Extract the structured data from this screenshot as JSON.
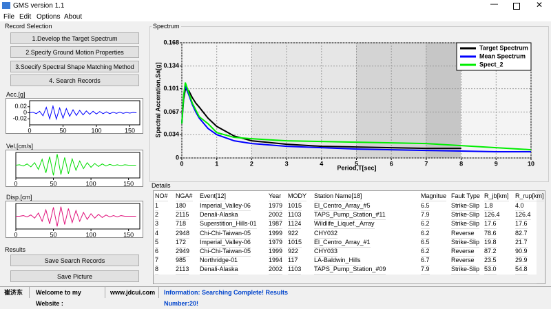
{
  "window": {
    "title": "GMS version 1.1"
  },
  "menu": [
    "File",
    "Edit",
    "Options",
    "About"
  ],
  "record_selection": {
    "title": "Record Selection",
    "buttons": [
      "1.Develop the Target Spectrum",
      "2.Specify Ground Motion  Properties",
      "3.Soecify Spectral Shape Matching Method",
      "4. Search Records"
    ]
  },
  "acc": {
    "type": "line",
    "label": "Acc.[g]",
    "color": "#0000ff",
    "xlim": [
      0,
      165
    ],
    "xticks": [
      0,
      50,
      100,
      150
    ],
    "ylim": [
      -0.04,
      0.04
    ],
    "yticks": [
      0.02,
      0,
      -0.02
    ],
    "x": [
      0,
      5,
      10,
      15,
      20,
      25,
      30,
      35,
      40,
      45,
      50,
      55,
      60,
      65,
      70,
      75,
      80,
      85,
      90,
      95,
      100,
      105,
      110,
      115,
      120,
      125,
      130,
      135,
      140,
      145,
      150,
      155,
      160
    ],
    "values": [
      0,
      0.002,
      -0.003,
      0.005,
      -0.01,
      0.018,
      -0.02,
      0.022,
      -0.021,
      0.016,
      -0.018,
      0.014,
      -0.012,
      0.01,
      -0.009,
      0.008,
      -0.007,
      0.006,
      -0.005,
      0.005,
      -0.004,
      0.004,
      -0.003,
      0.003,
      -0.003,
      0.002,
      -0.002,
      0.002,
      -0.002,
      0.001,
      -0.001,
      0.001,
      0
    ]
  },
  "vel": {
    "type": "line",
    "label": "Vel.[cm/s]",
    "color": "#00dd00",
    "xlim": [
      0,
      165
    ],
    "xticks": [
      0,
      50,
      100,
      150
    ],
    "ylim": [
      -30,
      30
    ],
    "x": [
      0,
      5,
      10,
      15,
      20,
      25,
      30,
      35,
      40,
      45,
      50,
      55,
      60,
      65,
      70,
      75,
      80,
      85,
      90,
      95,
      100,
      105,
      110,
      115,
      120,
      125,
      130,
      135,
      140,
      145,
      150,
      155,
      160
    ],
    "values": [
      0,
      1,
      -2,
      3,
      -4,
      6,
      -10,
      14,
      -18,
      20,
      -24,
      26,
      -22,
      18,
      -20,
      15,
      -12,
      10,
      -8,
      6,
      -5,
      4,
      -3,
      3,
      -2,
      2,
      -1,
      1,
      -1,
      1,
      0,
      0,
      0
    ]
  },
  "disp": {
    "type": "line",
    "label": "Disp.[cm]",
    "color": "#e0107a",
    "xlim": [
      0,
      165
    ],
    "xticks": [
      0,
      50,
      100,
      150
    ],
    "ylim": [
      -20,
      20
    ],
    "x": [
      0,
      5,
      10,
      15,
      20,
      25,
      30,
      35,
      40,
      45,
      50,
      55,
      60,
      65,
      70,
      75,
      80,
      85,
      90,
      95,
      100,
      105,
      110,
      115,
      120,
      125,
      130,
      135,
      140,
      145,
      150,
      155,
      160
    ],
    "values": [
      0,
      0,
      1,
      -1,
      2,
      -3,
      5,
      -8,
      10,
      -12,
      14,
      -16,
      15,
      -13,
      12,
      -10,
      9,
      -8,
      6,
      -5,
      4,
      -3,
      3,
      -2,
      2,
      -1,
      1,
      -1,
      1,
      0,
      0,
      0,
      0
    ]
  },
  "results": {
    "title": "Results",
    "buttons": [
      "Save Search Records",
      "Save Picture"
    ]
  },
  "spectrum": {
    "title": "Spectrum",
    "chart_data": {
      "type": "line",
      "x_label": "Period,T[sec]",
      "y_label": "Spectral Acceration,Sa[g]",
      "xlim": [
        0,
        10
      ],
      "xticks": [
        0,
        1,
        2,
        3,
        4,
        5,
        6,
        7,
        8,
        9,
        10
      ],
      "ylim": [
        0,
        0.168
      ],
      "yticks": [
        0,
        0.034,
        0.067,
        0.101,
        0.134,
        0.168
      ],
      "grid": true,
      "legend": "upper right",
      "x": [
        0,
        0.05,
        0.1,
        0.2,
        0.3,
        0.4,
        0.5,
        0.75,
        1,
        1.5,
        2,
        3,
        4,
        5,
        6,
        7,
        8,
        9,
        10
      ],
      "series": [
        {
          "name": "Target Spectrum",
          "color": "#000000",
          "values": [
            0.05,
            0.085,
            0.1,
            0.098,
            0.088,
            0.08,
            0.074,
            0.058,
            0.046,
            0.032,
            0.025,
            0.02,
            0.017,
            0.016,
            0.015,
            0.014,
            0.014,
            null,
            null
          ]
        },
        {
          "name": "Mean Spectrum",
          "color": "#0000ff",
          "values": [
            0.05,
            0.09,
            0.105,
            0.092,
            0.078,
            0.067,
            0.058,
            0.043,
            0.034,
            0.025,
            0.021,
            0.017,
            0.015,
            0.013,
            0.012,
            0.011,
            0.01,
            0.009,
            0.009
          ]
        },
        {
          "name": "Spect_2",
          "color": "#00ee00",
          "values": [
            0.05,
            0.09,
            0.11,
            0.095,
            0.08,
            0.07,
            0.06,
            0.05,
            0.037,
            0.03,
            0.028,
            0.025,
            0.024,
            0.023,
            0.022,
            0.021,
            0.018,
            0.015,
            0.012
          ]
        }
      ]
    }
  },
  "details": {
    "title": "Details",
    "columns": [
      "NO#",
      "NGA#",
      "Event[12]",
      "Year",
      "MODY",
      "Station Name[18]",
      "Magnitue",
      "Fault Type",
      "R_jb[km]",
      "R_rup[km]"
    ],
    "rows": [
      [
        "1",
        "180",
        "Imperial_Valley-06",
        "1979",
        "1015",
        "El_Centro_Array_#5",
        "6.5",
        "Strike-Slip",
        "1.8",
        "4.0"
      ],
      [
        "2",
        "2115",
        "Denali-Alaska",
        "2002",
        "1103",
        "TAPS_Pump_Station_#11",
        "7.9",
        "Strike-Slip",
        "126.4",
        "126.4"
      ],
      [
        "3",
        "718",
        "Superstition_Hills-01",
        "1987",
        "1124",
        "Wildlife_Liquef._Array",
        "6.2",
        "Strike-Slip",
        "17.6",
        "17.6"
      ],
      [
        "4",
        "2948",
        "Chi-Chi-Taiwan-05",
        "1999",
        "922",
        "CHY032",
        "6.2",
        "Reverse",
        "78.6",
        "82.7"
      ],
      [
        "5",
        "172",
        "Imperial_Valley-06",
        "1979",
        "1015",
        "El_Centro_Array_#1",
        "6.5",
        "Strike-Slip",
        "19.8",
        "21.7"
      ],
      [
        "6",
        "2949",
        "Chi-Chi-Taiwan-05",
        "1999",
        "922",
        "CHY033",
        "6.2",
        "Reverse",
        "87.2",
        "90.9"
      ],
      [
        "7",
        "985",
        "Northridge-01",
        "1994",
        "117",
        "LA-Baldwin_Hills",
        "6.7",
        "Reverse",
        "23.5",
        "29.9"
      ],
      [
        "8",
        "2113",
        "Denali-Alaska",
        "2002",
        "1103",
        "TAPS_Pump_Station_#09",
        "7.9",
        "Strike-Slip",
        "53.0",
        "54.8"
      ]
    ]
  },
  "status": {
    "author": "崔济东",
    "welcome": "Welcome to my Website :",
    "website": "www.jdcui.com",
    "info": "Information: Searching Complete! Results Number:20!"
  }
}
